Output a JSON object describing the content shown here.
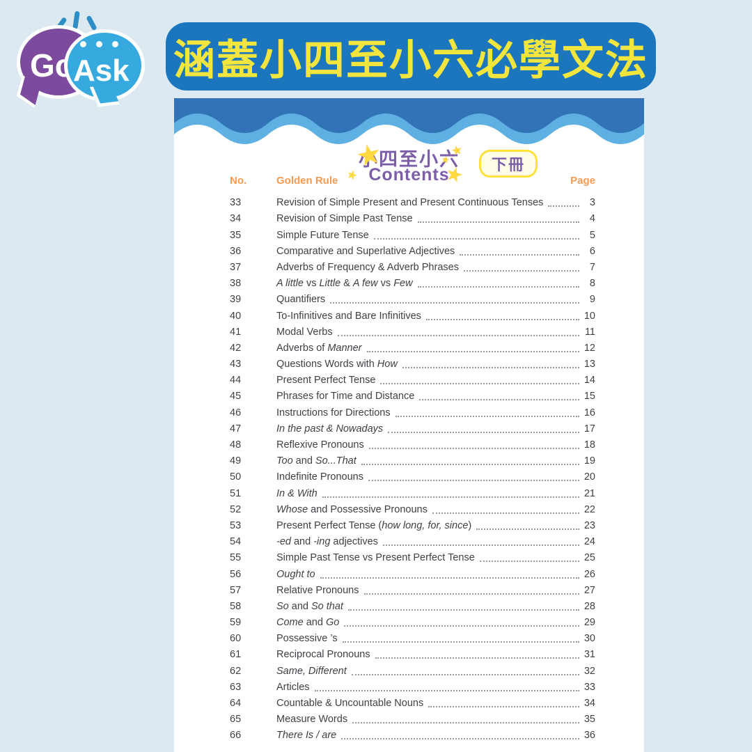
{
  "logo": {
    "go": "Go",
    "ask": "Ask"
  },
  "banner": {
    "text": "涵蓋小四至小六必學文法"
  },
  "page_header": {
    "title_zh": "小四至小六",
    "title_en": "Contents",
    "badge": "下冊",
    "star_icon": "star-icon"
  },
  "columns": {
    "no": "No.",
    "rule": "Golden Rule",
    "page": "Page"
  },
  "colors": {
    "canvas_bg": "#dde9f1",
    "banner_blue": "#1b76bd",
    "banner_yellow": "#f2e53e",
    "wave_dark_blue": "#3273b7",
    "wave_light_blue": "#5fb0e2",
    "title_purple": "#7b5ea7",
    "header_orange": "#f59a52",
    "row_text": "#3f3f45",
    "star_yellow": "#ffd93e",
    "badge_border": "#ffe13a",
    "logo_purple": "#7d4b9e",
    "logo_blue": "#36a9df"
  },
  "toc": [
    {
      "no": "33",
      "page": "3",
      "parts": [
        {
          "t": "Revision of Simple Present and Present Continuous Tenses",
          "i": false
        }
      ]
    },
    {
      "no": "34",
      "page": "4",
      "parts": [
        {
          "t": "Revision of Simple Past Tense",
          "i": false
        }
      ]
    },
    {
      "no": "35",
      "page": "5",
      "parts": [
        {
          "t": "Simple Future Tense",
          "i": false
        }
      ]
    },
    {
      "no": "36",
      "page": "6",
      "parts": [
        {
          "t": "Comparative and Superlative Adjectives",
          "i": false
        }
      ]
    },
    {
      "no": "37",
      "page": "7",
      "parts": [
        {
          "t": "Adverbs of Frequency & Adverb Phrases",
          "i": false
        }
      ]
    },
    {
      "no": "38",
      "page": "8",
      "parts": [
        {
          "t": "A little",
          "i": true
        },
        {
          "t": " vs ",
          "i": false
        },
        {
          "t": "Little",
          "i": true
        },
        {
          "t": " & ",
          "i": false
        },
        {
          "t": "A few",
          "i": true
        },
        {
          "t": " vs ",
          "i": false
        },
        {
          "t": "Few",
          "i": true
        }
      ]
    },
    {
      "no": "39",
      "page": "9",
      "parts": [
        {
          "t": "Quantifiers",
          "i": false
        }
      ]
    },
    {
      "no": "40",
      "page": "10",
      "parts": [
        {
          "t": "To-Infinitives and Bare Infinitives",
          "i": false
        }
      ]
    },
    {
      "no": "41",
      "page": "11",
      "parts": [
        {
          "t": "Modal Verbs",
          "i": false
        }
      ]
    },
    {
      "no": "42",
      "page": "12",
      "parts": [
        {
          "t": "Adverbs of ",
          "i": false
        },
        {
          "t": "Manner",
          "i": true
        }
      ]
    },
    {
      "no": "43",
      "page": "13",
      "parts": [
        {
          "t": "Questions Words with ",
          "i": false
        },
        {
          "t": "How",
          "i": true
        }
      ]
    },
    {
      "no": "44",
      "page": "14",
      "parts": [
        {
          "t": "Present Perfect Tense",
          "i": false
        }
      ]
    },
    {
      "no": "45",
      "page": "15",
      "parts": [
        {
          "t": "Phrases for Time and Distance",
          "i": false
        }
      ]
    },
    {
      "no": "46",
      "page": "16",
      "parts": [
        {
          "t": "Instructions for Directions",
          "i": false
        }
      ]
    },
    {
      "no": "47",
      "page": "17",
      "parts": [
        {
          "t": "In the past & Nowadays",
          "i": true
        }
      ]
    },
    {
      "no": "48",
      "page": "18",
      "parts": [
        {
          "t": "Reflexive Pronouns",
          "i": false
        }
      ]
    },
    {
      "no": "49",
      "page": "19",
      "parts": [
        {
          "t": "Too",
          "i": true
        },
        {
          "t": " and ",
          "i": false
        },
        {
          "t": "So...That",
          "i": true
        }
      ]
    },
    {
      "no": "50",
      "page": "20",
      "parts": [
        {
          "t": "Indefinite Pronouns",
          "i": false
        }
      ]
    },
    {
      "no": "51",
      "page": "21",
      "parts": [
        {
          "t": "In & With",
          "i": true
        }
      ]
    },
    {
      "no": "52",
      "page": "22",
      "parts": [
        {
          "t": "Whose",
          "i": true
        },
        {
          "t": " and Possessive Pronouns",
          "i": false
        }
      ]
    },
    {
      "no": "53",
      "page": "23",
      "parts": [
        {
          "t": "Present Perfect Tense (",
          "i": false
        },
        {
          "t": "how long, for, since",
          "i": true
        },
        {
          "t": ")",
          "i": false
        }
      ]
    },
    {
      "no": "54",
      "page": "24",
      "parts": [
        {
          "t": "-ed",
          "i": true
        },
        {
          "t": " and ",
          "i": false
        },
        {
          "t": "-ing",
          "i": true
        },
        {
          "t": " adjectives",
          "i": false
        }
      ]
    },
    {
      "no": "55",
      "page": "25",
      "parts": [
        {
          "t": "Simple Past Tense vs Present Perfect Tense",
          "i": false
        }
      ]
    },
    {
      "no": "56",
      "page": "26",
      "parts": [
        {
          "t": "Ought to",
          "i": true
        }
      ]
    },
    {
      "no": "57",
      "page": "27",
      "parts": [
        {
          "t": "Relative Pronouns",
          "i": false
        }
      ]
    },
    {
      "no": "58",
      "page": "28",
      "parts": [
        {
          "t": "So",
          "i": true
        },
        {
          "t": " and ",
          "i": false
        },
        {
          "t": "So that",
          "i": true
        }
      ]
    },
    {
      "no": "59",
      "page": "29",
      "parts": [
        {
          "t": "Come",
          "i": true
        },
        {
          "t": " and ",
          "i": false
        },
        {
          "t": "Go",
          "i": true
        }
      ]
    },
    {
      "no": "60",
      "page": "30",
      "parts": [
        {
          "t": "Possessive ’s",
          "i": false
        }
      ]
    },
    {
      "no": "61",
      "page": "31",
      "parts": [
        {
          "t": "Reciprocal Pronouns",
          "i": false
        }
      ]
    },
    {
      "no": "62",
      "page": "32",
      "parts": [
        {
          "t": "Same, Different",
          "i": true
        }
      ]
    },
    {
      "no": "63",
      "page": "33",
      "parts": [
        {
          "t": "Articles",
          "i": false
        }
      ]
    },
    {
      "no": "64",
      "page": "34",
      "parts": [
        {
          "t": "Countable & Uncountable Nouns",
          "i": false
        }
      ]
    },
    {
      "no": "65",
      "page": "35",
      "parts": [
        {
          "t": "Measure Words",
          "i": false
        }
      ]
    },
    {
      "no": "66",
      "page": "36",
      "parts": [
        {
          "t": "There Is / are",
          "i": true
        }
      ]
    }
  ]
}
